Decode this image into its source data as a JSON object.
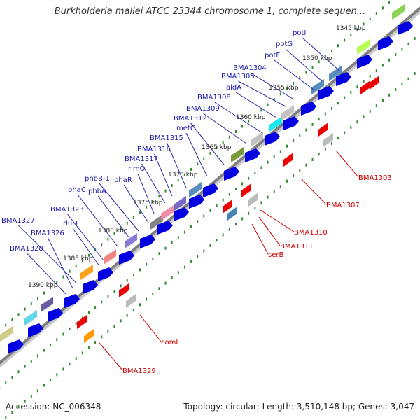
{
  "title": "Burkholderia mallei ATCC 23344 chromosome 1, complete sequen...",
  "footer": {
    "accession": "Accession: NC_006348",
    "summary": "Topology: circular; Length: 3,510,148 bp; Genes: 3,047"
  },
  "colors": {
    "backbone": "#7f7f7f",
    "forward_arrow": "#0000e0",
    "reverse_arrow": "#ee0000",
    "tick": "#2e8b2e",
    "blue_label": "#1a1aaa",
    "red_label": "#cc0000"
  },
  "scale_labels": [
    "1345 kbp",
    "1350 kbp",
    "1355 kbp",
    "1360 kbp",
    "1365 kbp",
    "1370 kbp",
    "1375 kbp",
    "1380 kbp",
    "1385 kbp",
    "1390 kbp"
  ],
  "forward_genes": [
    "potI",
    "potG",
    "potF",
    "BMA1304",
    "BMA1305",
    "aldA",
    "BMA1308",
    "BMA1309",
    "BMA1312",
    "metC",
    "BMA1315",
    "BMA1316",
    "BMA1317",
    "rimO",
    "phaR",
    "phbB-1",
    "phbA",
    "phaC",
    "BMA1323",
    "rluD",
    "BMA1327",
    "BMA1326",
    "BMA1328"
  ],
  "reverse_genes": [
    "BMA1303",
    "BMA1307",
    "BMA1310",
    "BMA1311",
    "serB",
    "comL",
    "BMA1329"
  ]
}
